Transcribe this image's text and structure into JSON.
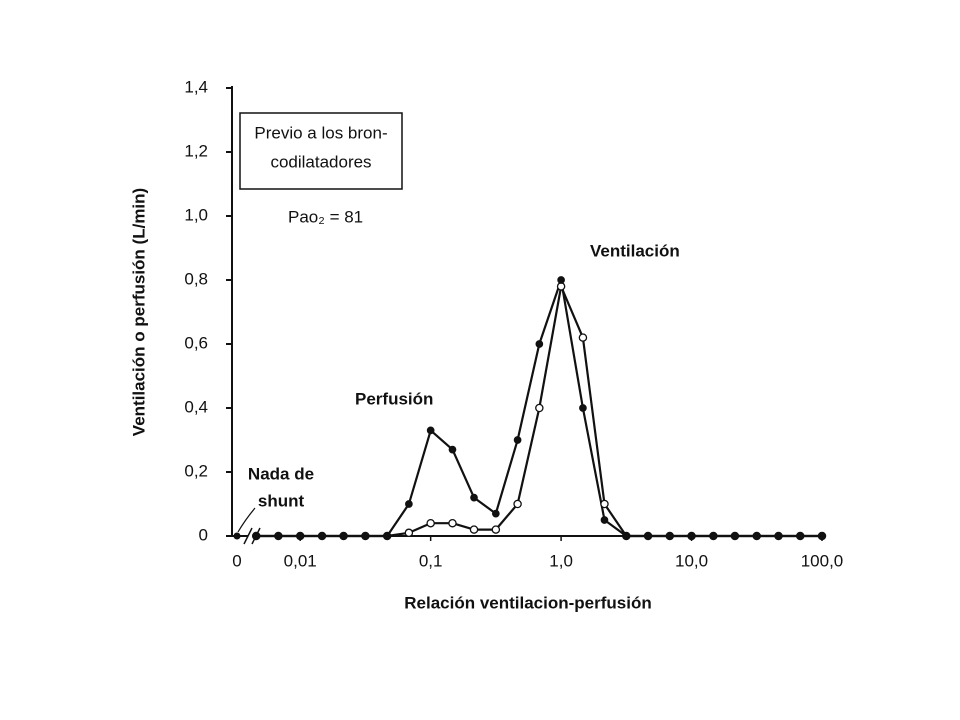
{
  "chart_data": {
    "type": "line",
    "xlabel": "Relación ventilacion-perfusión",
    "ylabel": "Ventilación o perfusión (L/min)",
    "xscale": "log",
    "xlim": [
      0.003,
      100
    ],
    "xticks": [
      {
        "value": 0.01,
        "label": "0,01"
      },
      {
        "value": 0.1,
        "label": "0,1"
      },
      {
        "value": 1,
        "label": "1,0"
      },
      {
        "value": 10,
        "label": "10,0"
      },
      {
        "value": 100,
        "label": "100,0"
      }
    ],
    "ylim": [
      0,
      1.4
    ],
    "yticks": [
      0,
      {
        "value": 0.2,
        "label": "0,2"
      },
      {
        "value": 0.4,
        "label": "0,4"
      },
      {
        "value": 0.6,
        "label": "0,6"
      },
      {
        "value": 0.8,
        "label": "0,8"
      },
      {
        "value": 1.0,
        "label": "1,0"
      },
      {
        "value": 1.2,
        "label": "1,2"
      },
      {
        "value": 1.4,
        "label": "1,4"
      }
    ],
    "shunt": {
      "label": "0",
      "value": 0
    },
    "x": [
      0.0046,
      0.0068,
      0.01,
      0.0147,
      0.0215,
      0.0316,
      0.0464,
      0.0681,
      0.1,
      0.147,
      0.215,
      0.316,
      0.464,
      0.681,
      1.0,
      1.47,
      2.15,
      3.16,
      4.64,
      6.81,
      10,
      14.7,
      21.5,
      31.6,
      46.4,
      68.1,
      100
    ],
    "series": [
      {
        "name": "Ventilación",
        "color": "#111111",
        "marker": "open",
        "values": [
          0,
          0,
          0,
          0,
          0,
          0,
          0,
          0.01,
          0.04,
          0.04,
          0.02,
          0.02,
          0.1,
          0.4,
          0.78,
          0.62,
          0.1,
          0,
          0,
          0,
          0,
          0,
          0,
          0,
          0,
          0,
          0
        ]
      },
      {
        "name": "Perfusión",
        "color": "#111111",
        "marker": "filled",
        "values": [
          0,
          0,
          0,
          0,
          0,
          0,
          0,
          0.1,
          0.33,
          0.27,
          0.12,
          0.07,
          0.3,
          0.6,
          0.8,
          0.4,
          0.05,
          0,
          0,
          0,
          0,
          0,
          0,
          0,
          0,
          0,
          0
        ]
      }
    ],
    "annotations": [
      "Previo a los bron-",
      "codilatadores",
      "Pao₂ = 81",
      "Nada de",
      "shunt"
    ]
  }
}
